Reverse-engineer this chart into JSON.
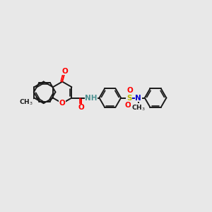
{
  "bg_color": "#e8e8e8",
  "bond_color": "#1a1a1a",
  "bond_width": 1.4,
  "atom_colors": {
    "O": "#ff0000",
    "N": "#0000cd",
    "S": "#b8b800",
    "NH_color": "#4a9090",
    "C": "#1a1a1a"
  },
  "BL": 0.52,
  "fig_xlim": [
    0,
    10
  ],
  "fig_ylim": [
    0,
    10
  ],
  "font_size": 7.5,
  "font_size_small": 6.5
}
